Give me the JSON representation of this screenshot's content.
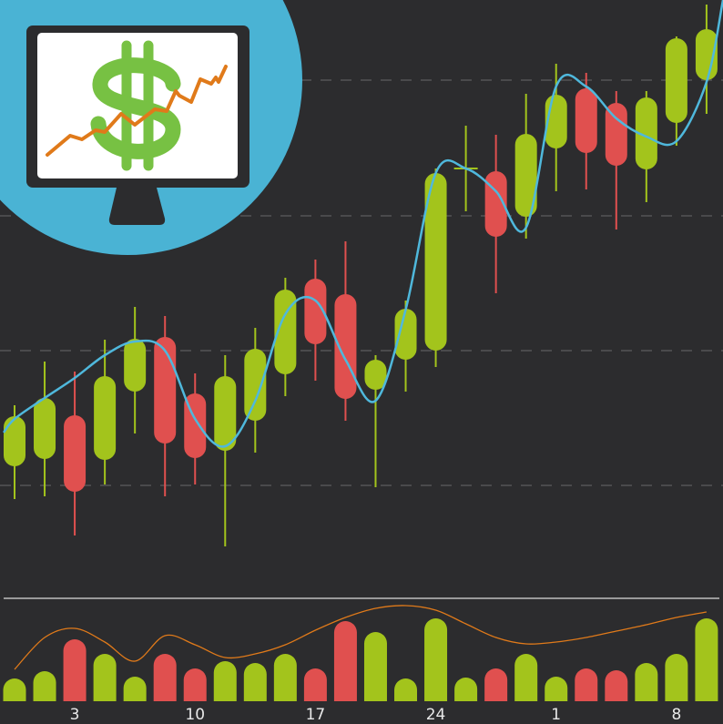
{
  "colors": {
    "background": "#2c2c2e",
    "up": "#a3c41c",
    "down": "#e0504f",
    "moving_average": "#4fb8dc",
    "volume_average": "#e07a1a",
    "badge_circle": "#4ab3d4",
    "dollar_icon": "#77c143",
    "separator": "#9a9a9a",
    "grid": "#4a4a4c"
  },
  "badge": {
    "icon": "monitor-dollar-growth-icon"
  },
  "chart_data": [
    {
      "type": "candlestick",
      "title": "",
      "xlabel": "",
      "ylabel": "",
      "grid": "horizontal-dashed",
      "ylim": [
        0,
        600
      ],
      "candles": [
        {
          "o": 88,
          "h": 155,
          "l": 52,
          "c": 143
        },
        {
          "o": 96,
          "h": 203,
          "l": 55,
          "c": 163
        },
        {
          "o": 144,
          "h": 192,
          "l": 12,
          "c": 60
        },
        {
          "o": 95,
          "h": 227,
          "l": 68,
          "c": 187
        },
        {
          "o": 170,
          "h": 263,
          "l": 124,
          "c": 228
        },
        {
          "o": 230,
          "h": 253,
          "l": 55,
          "c": 113
        },
        {
          "o": 168,
          "h": 190,
          "l": 68,
          "c": 97
        },
        {
          "o": 105,
          "h": 210,
          "l": 0,
          "c": 187
        },
        {
          "o": 138,
          "h": 240,
          "l": 103,
          "c": 217
        },
        {
          "o": 189,
          "h": 295,
          "l": 165,
          "c": 282
        },
        {
          "o": 294,
          "h": 315,
          "l": 182,
          "c": 222
        },
        {
          "o": 277,
          "h": 335,
          "l": 138,
          "c": 162
        },
        {
          "o": 172,
          "h": 210,
          "l": 65,
          "c": 205
        },
        {
          "o": 205,
          "h": 270,
          "l": 170,
          "c": 261
        },
        {
          "o": 215,
          "h": 415,
          "l": 197,
          "c": 410
        },
        {
          "o": 415,
          "h": 462,
          "l": 368,
          "c": 415
        },
        {
          "o": 412,
          "h": 452,
          "l": 278,
          "c": 340
        },
        {
          "o": 362,
          "h": 497,
          "l": 338,
          "c": 453
        },
        {
          "o": 437,
          "h": 530,
          "l": 390,
          "c": 496
        },
        {
          "o": 503,
          "h": 520,
          "l": 392,
          "c": 432
        },
        {
          "o": 487,
          "h": 500,
          "l": 348,
          "c": 418
        },
        {
          "o": 414,
          "h": 500,
          "l": 378,
          "c": 493
        },
        {
          "o": 465,
          "h": 560,
          "l": 440,
          "c": 558
        },
        {
          "o": 512,
          "h": 595,
          "l": 475,
          "c": 568
        }
      ],
      "moving_average": [
        140,
        163,
        185,
        210,
        225,
        215,
        140,
        110,
        160,
        255,
        270,
        205,
        160,
        260,
        410,
        415,
        390,
        350,
        505,
        505,
        470,
        450,
        445,
        510
      ]
    },
    {
      "type": "bar",
      "title": "",
      "ylim": [
        0,
        110
      ],
      "values": [
        25,
        33,
        68,
        52,
        27,
        52,
        36,
        44,
        42,
        52,
        36,
        88,
        76,
        25,
        91,
        26,
        36,
        52,
        27,
        36,
        34,
        42,
        52,
        91
      ],
      "moving_average": [
        35,
        70,
        80,
        65,
        44,
        72,
        62,
        48,
        52,
        62,
        78,
        92,
        102,
        105,
        100,
        85,
        70,
        63,
        65,
        70,
        77,
        84,
        92,
        98
      ],
      "x_tick_labels": [
        {
          "index": 2,
          "label": "3"
        },
        {
          "index": 6,
          "label": "10"
        },
        {
          "index": 10,
          "label": "17"
        },
        {
          "index": 14,
          "label": "24"
        },
        {
          "index": 18,
          "label": "1"
        },
        {
          "index": 22,
          "label": "8"
        }
      ]
    }
  ]
}
